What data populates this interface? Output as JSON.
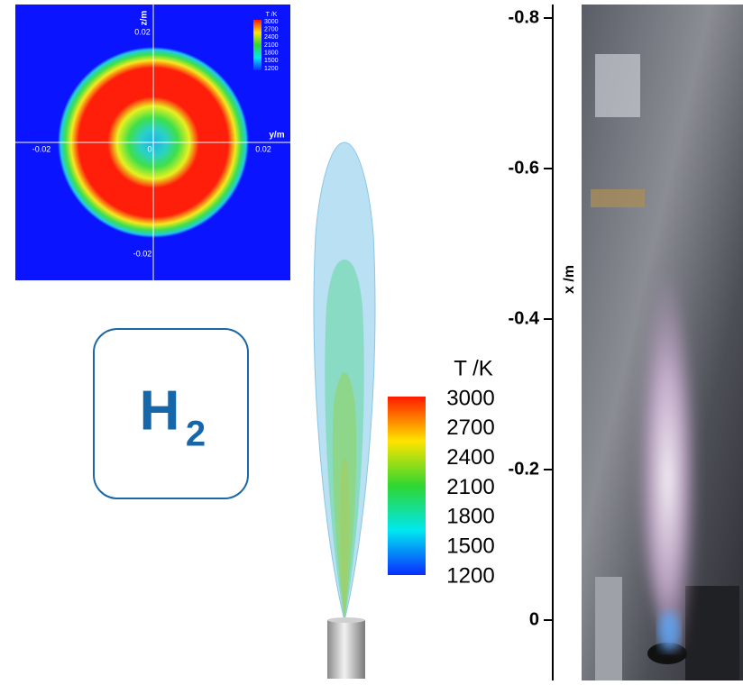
{
  "inset": {
    "y_label": "y/m",
    "z_label": "z/m",
    "z_ticks": [
      0.02,
      -0.02
    ],
    "y_ticks": [
      -0.02,
      0,
      0.02
    ],
    "legend_title": "T /K",
    "legend_values": [
      3000,
      2700,
      2400,
      2100,
      1800,
      1500,
      1200
    ]
  },
  "fuel": {
    "symbol": "H",
    "subscript": "2"
  },
  "colorbar": {
    "title": "T /K",
    "values": [
      3000,
      2700,
      2400,
      2100,
      1800,
      1500,
      1200
    ]
  },
  "axis": {
    "label": "x /m",
    "ticks": [
      -0.8,
      -0.6,
      -0.4,
      -0.2,
      0
    ]
  }
}
